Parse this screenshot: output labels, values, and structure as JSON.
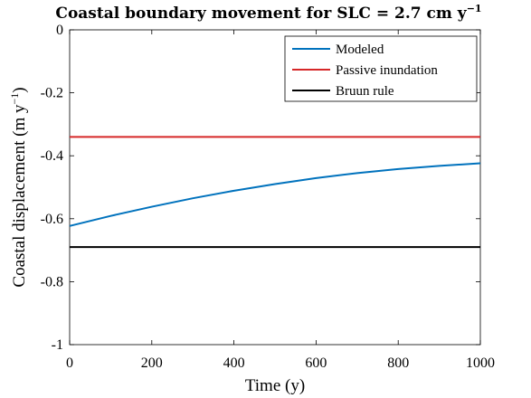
{
  "chart_data": {
    "type": "line",
    "title_main": "Coastal boundary movement for SLC = 2.7 cm y",
    "title_sup": "−1",
    "xlabel": "Time (y)",
    "ylabel_main": "Coastal displacement (m y",
    "ylabel_sup": "−1",
    "ylabel_close": ")",
    "xlim": [
      0,
      1000
    ],
    "ylim": [
      -1,
      0
    ],
    "x_ticks": [
      0,
      200,
      400,
      600,
      800,
      1000
    ],
    "x_tick_labels": [
      "0",
      "200",
      "400",
      "600",
      "800",
      "1000"
    ],
    "y_ticks": [
      0,
      -0.2,
      -0.4,
      -0.6,
      -0.8,
      -1
    ],
    "y_tick_labels": [
      "0",
      "-0.2",
      "-0.4",
      "-0.6",
      "-0.8",
      "-1"
    ],
    "grid": false,
    "legend_position": "top-right",
    "series": [
      {
        "name": "Modeled",
        "color": "#0072BD",
        "x": [
          0,
          100,
          200,
          300,
          400,
          500,
          600,
          700,
          800,
          900,
          1000
        ],
        "y": [
          -0.623,
          -0.591,
          -0.562,
          -0.535,
          -0.511,
          -0.49,
          -0.471,
          -0.455,
          -0.442,
          -0.432,
          -0.424
        ]
      },
      {
        "name": "Passive inundation",
        "color": "#D62728",
        "x": [
          0,
          1000
        ],
        "y": [
          -0.34,
          -0.34
        ]
      },
      {
        "name": "Bruun rule",
        "color": "#000000",
        "x": [
          0,
          1000
        ],
        "y": [
          -0.69,
          -0.69
        ]
      }
    ]
  }
}
